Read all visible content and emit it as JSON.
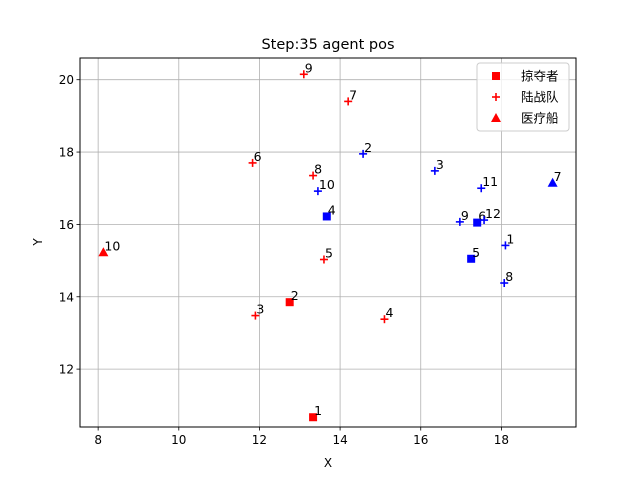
{
  "chart_data": {
    "type": "scatter",
    "title": "Step:35  agent pos",
    "xlabel": "X",
    "ylabel": "Y",
    "xlim": [
      7.55,
      19.85
    ],
    "ylim": [
      10.4,
      20.6
    ],
    "xticks": [
      "8",
      "10",
      "12",
      "14",
      "16",
      "18"
    ],
    "yticks": [
      "12",
      "14",
      "16",
      "18",
      "20"
    ],
    "grid": true,
    "legend_position": "top-right",
    "colors": {
      "red": "#ff0000",
      "blue": "#0000ff"
    },
    "legend": [
      {
        "label": "掠夺者",
        "marker": "square"
      },
      {
        "label": "陆战队",
        "marker": "plus"
      },
      {
        "label": "医疗船",
        "marker": "triangle"
      }
    ],
    "series": [
      {
        "name": "掠夺者",
        "marker": "square",
        "team": "red",
        "points": [
          {
            "x": 13.33,
            "y": 10.67,
            "label": "1"
          },
          {
            "x": 12.75,
            "y": 13.85,
            "label": "2"
          }
        ]
      },
      {
        "name": "陆战队",
        "marker": "plus",
        "team": "red",
        "points": [
          {
            "x": 14.2,
            "y": 19.4,
            "label": "7"
          },
          {
            "x": 13.1,
            "y": 20.15,
            "label": "9"
          },
          {
            "x": 11.83,
            "y": 17.7,
            "label": "6"
          },
          {
            "x": 13.33,
            "y": 17.35,
            "label": "8"
          },
          {
            "x": 13.6,
            "y": 15.03,
            "label": "5"
          },
          {
            "x": 11.9,
            "y": 13.48,
            "label": "3"
          },
          {
            "x": 15.1,
            "y": 13.38,
            "label": "4"
          }
        ]
      },
      {
        "name": "医疗船",
        "marker": "triangle",
        "team": "red",
        "points": [
          {
            "x": 8.13,
            "y": 15.23,
            "label": "10"
          }
        ]
      },
      {
        "name": "",
        "marker": "square",
        "team": "blue",
        "points": [
          {
            "x": 13.67,
            "y": 16.22,
            "label": "4"
          },
          {
            "x": 17.4,
            "y": 16.05,
            "label": "6"
          },
          {
            "x": 17.25,
            "y": 15.05,
            "label": "5"
          }
        ]
      },
      {
        "name": "",
        "marker": "plus",
        "team": "blue",
        "points": [
          {
            "x": 14.57,
            "y": 17.95,
            "label": "2"
          },
          {
            "x": 16.35,
            "y": 17.48,
            "label": "3"
          },
          {
            "x": 13.45,
            "y": 16.92,
            "label": "10"
          },
          {
            "x": 17.5,
            "y": 17.0,
            "label": "11"
          },
          {
            "x": 16.97,
            "y": 16.07,
            "label": "9"
          },
          {
            "x": 17.57,
            "y": 16.12,
            "label": "12"
          },
          {
            "x": 18.1,
            "y": 15.42,
            "label": "1"
          },
          {
            "x": 18.07,
            "y": 14.38,
            "label": "8"
          }
        ]
      },
      {
        "name": "",
        "marker": "triangle",
        "team": "blue",
        "points": [
          {
            "x": 19.27,
            "y": 17.15,
            "label": "7"
          }
        ]
      }
    ]
  }
}
